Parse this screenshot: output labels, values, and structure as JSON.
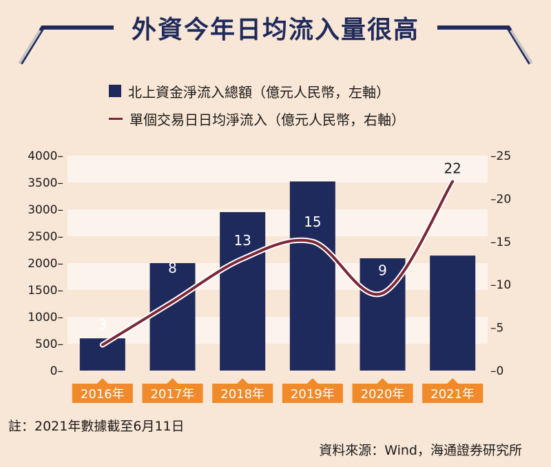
{
  "title": "外資今年日均流入量很高",
  "legend": {
    "bar_label": "北上資金淨流入總額（億元人民幣，左軸）",
    "line_label": "單個交易日日均淨流入（億元人民幣，右軸）"
  },
  "note": "註：2021年數據截至6月11日",
  "source": "資料來源：Wind，海通證券研究所",
  "colors": {
    "bar": "#1f2a5c",
    "line": "#7a2838",
    "category_tag": "#f08a2a",
    "background": "#f8e6d6"
  },
  "chart_data": {
    "type": "bar",
    "categories": [
      "2016年",
      "2017年",
      "2018年",
      "2019年",
      "2020年",
      "2021年"
    ],
    "series": [
      {
        "name": "北上資金淨流入總額（億元人民幣，左軸）",
        "type": "bar",
        "axis": "left",
        "values": [
          600,
          2000,
          2950,
          3520,
          2090,
          2140
        ]
      },
      {
        "name": "單個交易日日均淨流入（億元人民幣，右軸）",
        "type": "line",
        "axis": "right",
        "values": [
          3,
          8,
          13,
          15,
          9,
          22
        ],
        "data_labels": [
          "3",
          "8",
          "13",
          "15",
          "9",
          "22"
        ]
      }
    ],
    "left_axis": {
      "ylim": [
        0,
        4000
      ],
      "ticks": [
        0,
        500,
        1000,
        1500,
        2000,
        2500,
        3000,
        3500,
        4000
      ],
      "tick_labels": [
        "0–",
        "500–",
        "1000–",
        "1500–",
        "2000–",
        "2500–",
        "3000–",
        "3500–",
        "4000–"
      ]
    },
    "right_axis": {
      "ylim": [
        0,
        25
      ],
      "ticks": [
        0,
        5,
        10,
        15,
        20,
        25
      ],
      "tick_labels": [
        "–0",
        "–5",
        "–10",
        "–15",
        "–20",
        "–25"
      ]
    },
    "grid": "horizontal bands",
    "legend_position": "top"
  }
}
